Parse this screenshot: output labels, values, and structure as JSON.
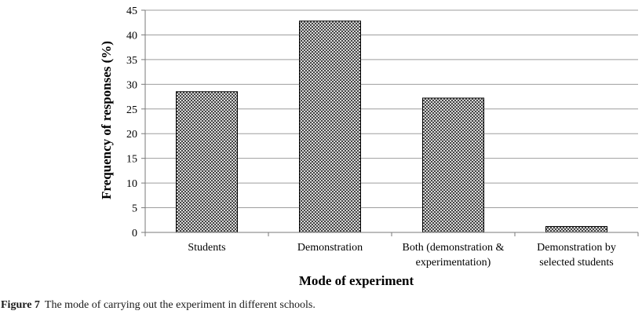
{
  "chart_data": {
    "type": "bar",
    "categories": [
      [
        "Students"
      ],
      [
        "Demonstration"
      ],
      [
        "Both (demonstration &",
        "experimentation)"
      ],
      [
        "Demonstration by",
        "selected students"
      ]
    ],
    "values": [
      28.5,
      42.8,
      27.2,
      1.2
    ],
    "xlabel": "Mode of experiment",
    "ylabel": "Frequency of responses (%)",
    "ylim": [
      0,
      45
    ],
    "yticks": [
      0,
      5,
      10,
      15,
      20,
      25,
      30,
      35,
      40,
      45
    ],
    "grid": "horizontal",
    "bar_fill": "crosshatch",
    "colors": {
      "bar_edge": "#000000",
      "grid": "#9e9e9e",
      "axis": "#7a7a7a"
    }
  },
  "caption": {
    "label": "Figure 7",
    "text": "The mode of carrying out the experiment in different schools."
  }
}
